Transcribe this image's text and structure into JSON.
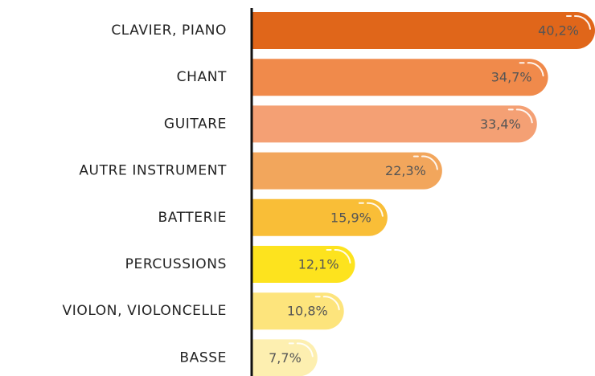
{
  "chart_data": {
    "type": "bar",
    "orientation": "horizontal",
    "categories": [
      "CLAVIER, PIANO",
      "CHANT",
      "GUITARE",
      "AUTRE INSTRUMENT",
      "BATTERIE",
      "PERCUSSIONS",
      "VIOLON, VIOLONCELLE",
      "BASSE"
    ],
    "values": [
      40.2,
      34.7,
      33.4,
      22.3,
      15.9,
      12.1,
      10.8,
      7.7
    ],
    "value_labels": [
      "40,2%",
      "34,7%",
      "33,4%",
      "22,3%",
      "15,9%",
      "12,1%",
      "10,8%",
      "7,7%"
    ],
    "colors": [
      "#e0661a",
      "#f08a4b",
      "#f4a074",
      "#f2a65c",
      "#f9be37",
      "#fde31e",
      "#fde47c",
      "#fdefb0"
    ]
  }
}
